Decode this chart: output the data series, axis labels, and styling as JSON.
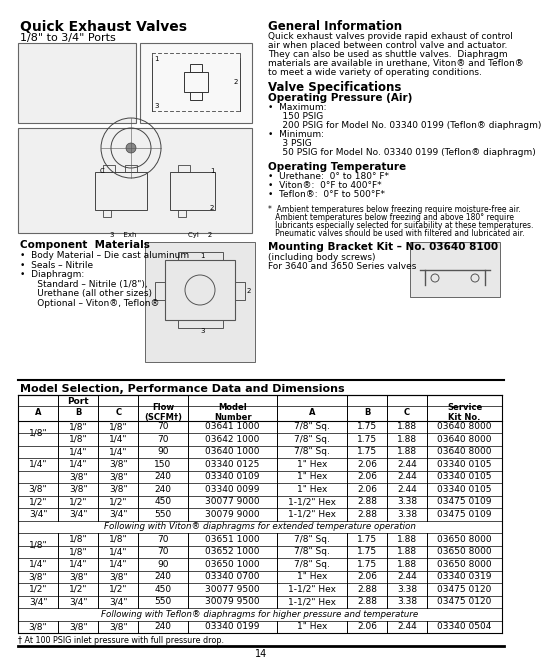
{
  "title": "Quick Exhaust Valves",
  "subtitle": "1/8\" to 3/4\" Ports",
  "bg_color": "#ffffff",
  "gen_info_title": "General Information",
  "general_info_lines": [
    "Quick exhaust valves provide rapid exhaust of control",
    "air when placed between control valve and actuator.",
    "They can also be used as shuttle valves.  Diaphragm",
    "materials are available in urethane, Viton® and Teflon®",
    "to meet a wide variety of operating conditions."
  ],
  "valve_spec_title": "Valve Specifications",
  "op_pressure_title": "Operating Pressure (Air)",
  "op_pressure_lines": [
    "•  Maximum:",
    "     150 PSIG",
    "     200 PSIG for Model No. 03340 0199 (Teflon® diaphragm)",
    "•  Minimum:",
    "     3 PSIG",
    "     50 PSIG for Model No. 03340 0199 (Teflon® diaphragm)"
  ],
  "op_temp_title": "Operating Temperature",
  "op_temp_lines": [
    "•  Urethane:  0° to 180° F*",
    "•  Viton®:  0°F to 400°F*",
    "•  Teflon®:  0°F to 500°F*"
  ],
  "footnote_lines": [
    "*  Ambient temperatures below freezing require moisture-free air.",
    "   Ambient temperatures below freezing and above 180° require",
    "   lubricants especially selected for suitability at these temperatures.",
    "   Pneumatic valves should be used with filtered and lubricated air."
  ],
  "mounting_title": "Mounting Bracket Kit – No. 03640 8100",
  "mounting_sub": "(including body screws)",
  "mounting_info": "For 3640 and 3650 Series valves",
  "comp_title": "Component  Materials",
  "comp_lines": [
    "•  Body Material – Die cast aluminum",
    "•  Seals – Nitrile",
    "•  Diaphragm:",
    "      Standard – Nitrile (1/8\"),",
    "      Urethane (all other sizes)",
    "      Optional – Viton®, Teflon®"
  ],
  "table_title": "Model Selection, Performance Data and Dimensions",
  "table_data_section1": [
    [
      "1/8\"",
      "1/8\"",
      "1/8\"",
      "70",
      "03641 1000",
      "7/8\" Sq.",
      "1.75",
      "1.88",
      "03640 8000"
    ],
    [
      "",
      "1/8\"",
      "1/4\"",
      "70",
      "03642 1000",
      "7/8\" Sq.",
      "1.75",
      "1.88",
      "03640 8000"
    ],
    [
      "1/4\"",
      "1/4\"",
      "1/4\"",
      "90",
      "03640 1000",
      "7/8\" Sq.",
      "1.75",
      "1.88",
      "03640 8000"
    ],
    [
      "",
      "1/4\"",
      "3/8\"",
      "150",
      "03340 0125",
      "1\" Hex",
      "2.06",
      "2.44",
      "03340 0105"
    ],
    [
      "",
      "3/8\"",
      "3/8\"",
      "240",
      "03340 0109",
      "1\" Hex",
      "2.06",
      "2.44",
      "03340 0105"
    ],
    [
      "3/8\"",
      "3/8\"",
      "3/8\"",
      "240",
      "03340 0099",
      "1\" Hex",
      "2.06",
      "2.44",
      "03340 0105"
    ],
    [
      "1/2\"",
      "1/2\"",
      "1/2\"",
      "450",
      "30077 9000",
      "1-1/2\" Hex",
      "2.88",
      "3.38",
      "03475 0109"
    ],
    [
      "3/4\"",
      "3/4\"",
      "3/4\"",
      "550",
      "30079 9000",
      "1-1/2\" Hex",
      "2.88",
      "3.38",
      "03475 0109"
    ]
  ],
  "separator1": "Following with Viton® diaphragms for extended temperature operation",
  "table_data_section2": [
    [
      "1/8\"",
      "1/8\"",
      "1/8\"",
      "70",
      "03651 1000",
      "7/8\" Sq.",
      "1.75",
      "1.88",
      "03650 8000"
    ],
    [
      "",
      "1/8\"",
      "1/4\"",
      "70",
      "03652 1000",
      "7/8\" Sq.",
      "1.75",
      "1.88",
      "03650 8000"
    ],
    [
      "1/4\"",
      "1/4\"",
      "1/4\"",
      "90",
      "03650 1000",
      "7/8\" Sq.",
      "1.75",
      "1.88",
      "03650 8000"
    ],
    [
      "3/8\"",
      "3/8\"",
      "3/8\"",
      "240",
      "03340 0700",
      "1\" Hex",
      "2.06",
      "2.44",
      "03340 0319"
    ],
    [
      "1/2\"",
      "1/2\"",
      "1/2\"",
      "450",
      "30077 9500",
      "1-1/2\" Hex",
      "2.88",
      "3.38",
      "03475 0120"
    ],
    [
      "3/4\"",
      "3/4\"",
      "3/4\"",
      "550",
      "30079 9500",
      "1-1/2\" Hex",
      "2.88",
      "3.38",
      "03475 0120"
    ]
  ],
  "separator2": "Following with Teflon® diaphragms for higher pressure and temperature",
  "table_data_section3": [
    [
      "3/8\"",
      "3/8\"",
      "3/8\"",
      "240",
      "03340 0199",
      "1\" Hex",
      "2.06",
      "2.44",
      "03340 0504"
    ]
  ],
  "table_footnote": "† At 100 PSIG inlet pressure with full pressure drop.",
  "page_num": "14"
}
